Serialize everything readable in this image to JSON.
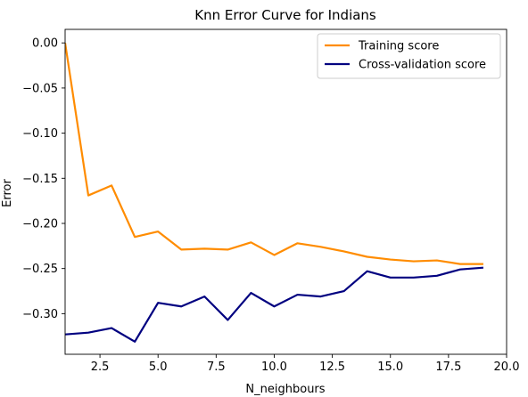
{
  "chart_data": {
    "type": "line",
    "title": "Knn Error Curve for Indians",
    "xlabel": "N_neighbours",
    "ylabel": "Error",
    "xlim": [
      1,
      20
    ],
    "ylim": [
      -0.345,
      0.015
    ],
    "xticks": [
      2.5,
      5.0,
      7.5,
      10.0,
      12.5,
      15.0,
      17.5,
      20.0
    ],
    "xtick_labels": [
      "2.5",
      "5.0",
      "7.5",
      "10.0",
      "12.5",
      "15.0",
      "17.5",
      "20.0"
    ],
    "yticks": [
      0.0,
      -0.05,
      -0.1,
      -0.15,
      -0.2,
      -0.25,
      -0.3
    ],
    "ytick_labels": [
      "0.00",
      "−0.05",
      "−0.10",
      "−0.15",
      "−0.20",
      "−0.25",
      "−0.30"
    ],
    "grid": false,
    "legend_position": "top-right",
    "x": [
      1,
      2,
      3,
      4,
      5,
      6,
      7,
      8,
      9,
      10,
      11,
      12,
      13,
      14,
      15,
      16,
      17,
      18,
      19
    ],
    "series": [
      {
        "name": "Training score",
        "color": "#ff8c00",
        "values": [
          0.0,
          -0.169,
          -0.158,
          -0.215,
          -0.209,
          -0.229,
          -0.228,
          -0.229,
          -0.221,
          -0.235,
          -0.222,
          -0.226,
          -0.231,
          -0.237,
          -0.24,
          -0.242,
          -0.241,
          -0.245,
          -0.245
        ]
      },
      {
        "name": "Cross-validation score",
        "color": "#000080",
        "values": [
          -0.323,
          -0.321,
          -0.316,
          -0.331,
          -0.288,
          -0.292,
          -0.281,
          -0.307,
          -0.277,
          -0.292,
          -0.279,
          -0.281,
          -0.275,
          -0.253,
          -0.26,
          -0.26,
          -0.258,
          -0.251,
          -0.249
        ]
      }
    ]
  }
}
